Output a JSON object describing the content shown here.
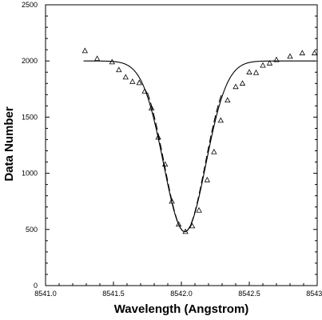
{
  "chart_data": {
    "type": "scatter",
    "title": "",
    "xlabel": "Wavelength (Angstrom)",
    "ylabel": "Data Number",
    "xlim": [
      8541.0,
      8543.0
    ],
    "ylim": [
      0,
      2500
    ],
    "x_ticks": [
      "8541.0",
      "8541.5",
      "8542.0",
      "8542.5",
      "8543.0"
    ],
    "y_ticks": [
      "0",
      "500",
      "1000",
      "1500",
      "2000",
      "2500"
    ],
    "grid": false,
    "legend": "none",
    "series": [
      {
        "kind": "points",
        "marker": "open-triangle",
        "points": [
          {
            "x": 8541.29,
            "y": 2090
          },
          {
            "x": 8541.38,
            "y": 2020
          },
          {
            "x": 8541.49,
            "y": 1990
          },
          {
            "x": 8541.54,
            "y": 1920
          },
          {
            "x": 8541.59,
            "y": 1855
          },
          {
            "x": 8541.64,
            "y": 1815
          },
          {
            "x": 8541.69,
            "y": 1805
          },
          {
            "x": 8541.73,
            "y": 1730
          },
          {
            "x": 8541.78,
            "y": 1580
          },
          {
            "x": 8541.83,
            "y": 1320
          },
          {
            "x": 8541.88,
            "y": 1080
          },
          {
            "x": 8541.93,
            "y": 750
          },
          {
            "x": 8541.98,
            "y": 545
          },
          {
            "x": 8542.03,
            "y": 480
          },
          {
            "x": 8542.08,
            "y": 530
          },
          {
            "x": 8542.13,
            "y": 670
          },
          {
            "x": 8542.19,
            "y": 940
          },
          {
            "x": 8542.24,
            "y": 1190
          },
          {
            "x": 8542.29,
            "y": 1470
          },
          {
            "x": 8542.34,
            "y": 1650
          },
          {
            "x": 8542.4,
            "y": 1770
          },
          {
            "x": 8542.45,
            "y": 1800
          },
          {
            "x": 8542.5,
            "y": 1900
          },
          {
            "x": 8542.55,
            "y": 1895
          },
          {
            "x": 8542.6,
            "y": 1960
          },
          {
            "x": 8542.65,
            "y": 1980
          },
          {
            "x": 8542.7,
            "y": 2010
          },
          {
            "x": 8542.8,
            "y": 2040
          },
          {
            "x": 8542.89,
            "y": 2070
          },
          {
            "x": 8542.98,
            "y": 2070
          }
        ]
      },
      {
        "kind": "fit-line",
        "line_style": "solid",
        "continuum": 2000,
        "center": 8542.025,
        "depth": 1520,
        "sigma": 0.155,
        "x_range": [
          8541.28,
          8542.98
        ]
      },
      {
        "kind": "fit-line",
        "line_style": "dashed",
        "continuum": 2000,
        "center": 8542.025,
        "depth": 1520,
        "sigma": 0.15,
        "x_range": [
          8541.75,
          8542.3
        ]
      }
    ]
  }
}
